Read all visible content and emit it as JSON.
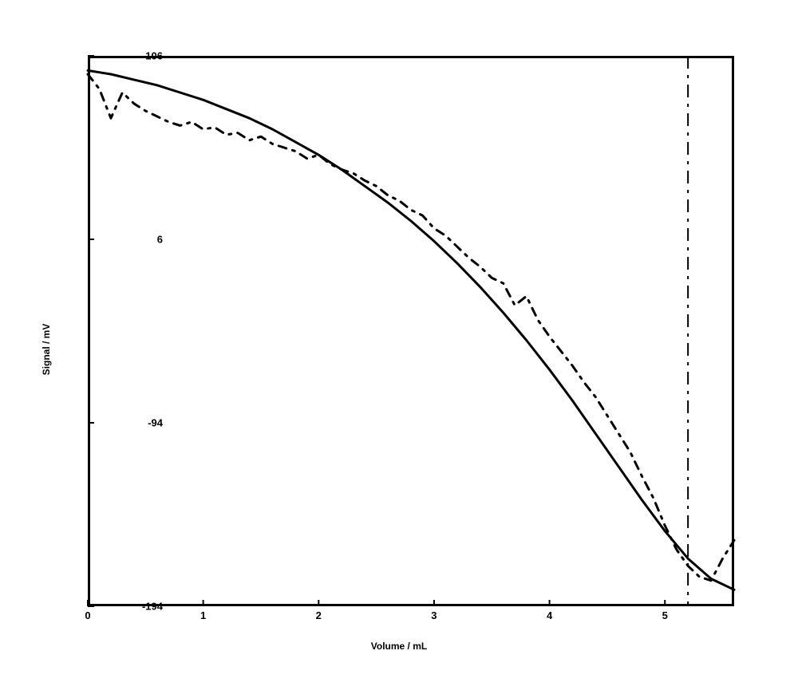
{
  "chart": {
    "type": "line",
    "background_color": "#ffffff",
    "border_color": "#000000",
    "border_width": 3,
    "xlabel": "Volume / mL",
    "ylabel": "Signal / mV",
    "label_fontsize": 12,
    "label_fontweight": "bold",
    "tick_fontsize": 13,
    "tick_fontweight": "bold",
    "xlim": [
      0,
      5.6
    ],
    "ylim": [
      -194,
      106
    ],
    "xticks": [
      0,
      1,
      2,
      3,
      4,
      5
    ],
    "yticks": [
      -194,
      -94,
      6,
      106
    ],
    "series": [
      {
        "name": "solid",
        "color": "#000000",
        "line_width": 3,
        "dash": "none",
        "x": [
          0.0,
          0.2,
          0.4,
          0.6,
          0.8,
          1.0,
          1.2,
          1.4,
          1.6,
          1.8,
          2.0,
          2.2,
          2.4,
          2.6,
          2.8,
          3.0,
          3.2,
          3.4,
          3.6,
          3.8,
          4.0,
          4.2,
          4.4,
          4.6,
          4.8,
          5.0,
          5.2,
          5.4,
          5.6
        ],
        "y": [
          98,
          96,
          93,
          90,
          86,
          82,
          77,
          72,
          66,
          59,
          52,
          44,
          35,
          26,
          16,
          5,
          -7,
          -20,
          -34,
          -49,
          -65,
          -82,
          -100,
          -118,
          -136,
          -153,
          -168,
          -179,
          -185
        ]
      },
      {
        "name": "dashed",
        "color": "#000000",
        "line_width": 3,
        "dash": "10 8 3 8",
        "x": [
          0.0,
          0.1,
          0.2,
          0.3,
          0.4,
          0.5,
          0.6,
          0.7,
          0.8,
          0.9,
          1.0,
          1.1,
          1.2,
          1.3,
          1.4,
          1.5,
          1.6,
          1.7,
          1.8,
          1.9,
          2.0,
          2.1,
          2.2,
          2.3,
          2.4,
          2.5,
          2.6,
          2.7,
          2.8,
          2.9,
          3.0,
          3.1,
          3.2,
          3.3,
          3.4,
          3.5,
          3.6,
          3.7,
          3.8,
          3.9,
          4.0,
          4.1,
          4.2,
          4.3,
          4.4,
          4.5,
          4.6,
          4.7,
          4.8,
          4.9,
          5.0,
          5.1,
          5.2,
          5.3,
          5.4,
          5.5,
          5.6
        ],
        "y": [
          96,
          88,
          72,
          86,
          80,
          76,
          73,
          70,
          68,
          70,
          66,
          67,
          63,
          64,
          60,
          62,
          58,
          56,
          54,
          50,
          52,
          47,
          44,
          42,
          38,
          35,
          30,
          27,
          22,
          19,
          12,
          8,
          2,
          -4,
          -9,
          -15,
          -18,
          -30,
          -25,
          -38,
          -47,
          -55,
          -63,
          -72,
          -80,
          -90,
          -100,
          -110,
          -123,
          -135,
          -150,
          -163,
          -172,
          -178,
          -180,
          -168,
          -158
        ]
      }
    ],
    "vline": {
      "x": 5.2,
      "color": "#000000",
      "line_width": 2,
      "dash": "16 8 4 8"
    }
  }
}
